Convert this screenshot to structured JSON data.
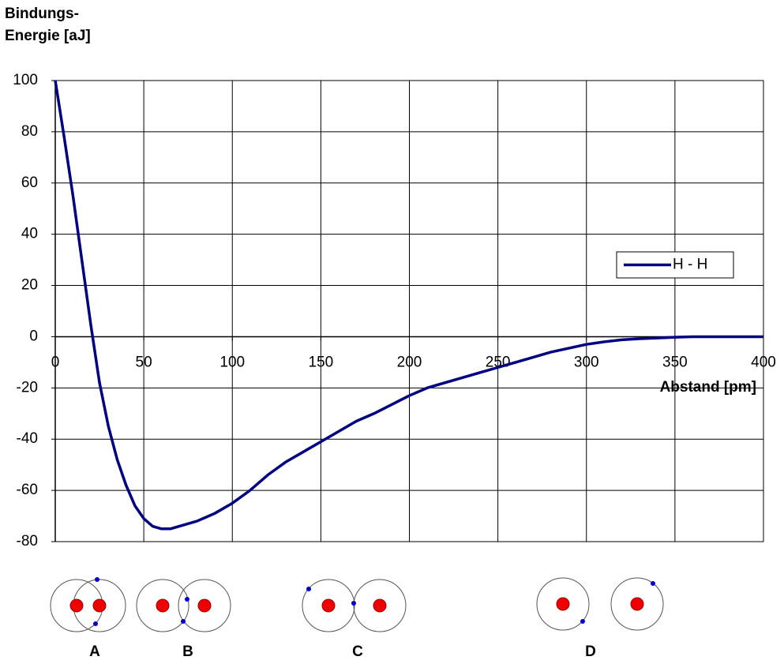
{
  "chart_data": {
    "type": "line",
    "ylabel": [
      "Bindungs-",
      "Energie [aJ]"
    ],
    "xlabel": "Abstand [pm]",
    "x": [
      0,
      5,
      10,
      15,
      20,
      25,
      30,
      35,
      40,
      45,
      50,
      55,
      60,
      65,
      70,
      75,
      80,
      90,
      100,
      110,
      120,
      130,
      140,
      150,
      160,
      170,
      180,
      190,
      200,
      210,
      220,
      230,
      240,
      250,
      260,
      270,
      280,
      290,
      300,
      310,
      320,
      330,
      340,
      350,
      360,
      370,
      380,
      390,
      400
    ],
    "series": [
      {
        "name": "H - H",
        "color": "#000080",
        "values": [
          100,
          78,
          55,
          30,
          5,
          -18,
          -35,
          -48,
          -58,
          -66,
          -71,
          -74,
          -75,
          -75,
          -74,
          -73,
          -72,
          -69,
          -65,
          -60,
          -54,
          -49,
          -45,
          -41,
          -37,
          -33,
          -30,
          -26.5,
          -23,
          -20,
          -18,
          -16,
          -14,
          -12,
          -10,
          -8,
          -6,
          -4.5,
          -3,
          -2,
          -1.2,
          -0.8,
          -0.5,
          -0.2,
          0,
          0,
          0,
          0,
          0
        ]
      }
    ],
    "xlim": [
      0,
      400
    ],
    "xticks": [
      0,
      50,
      100,
      150,
      200,
      250,
      300,
      350,
      400
    ],
    "ylim": [
      -80,
      100
    ],
    "yticks": [
      -80,
      -60,
      -40,
      -20,
      0,
      20,
      40,
      60,
      80,
      100
    ],
    "grid": true,
    "legend": "right",
    "annotations": [
      "A",
      "B",
      "C",
      "D"
    ]
  }
}
